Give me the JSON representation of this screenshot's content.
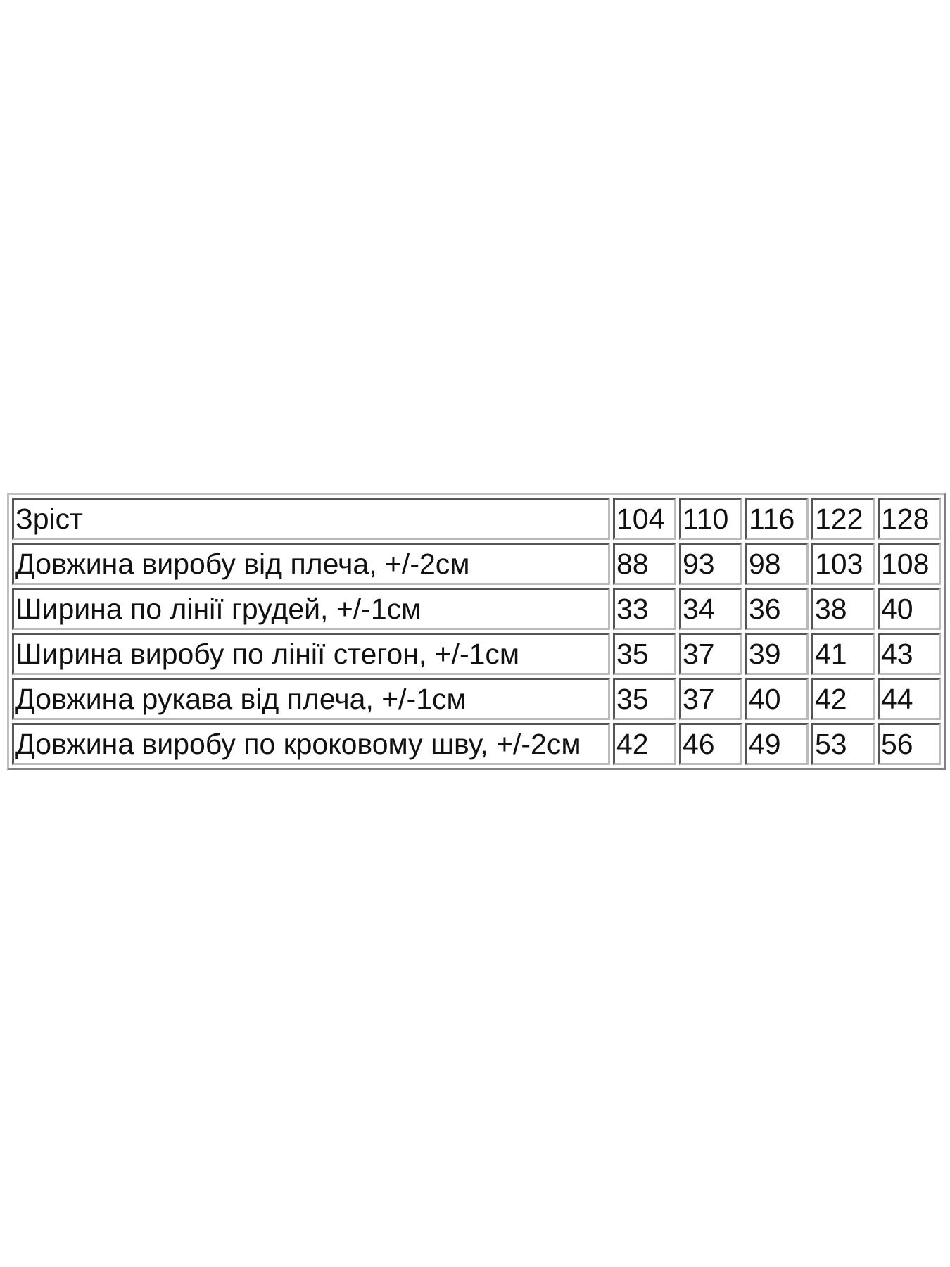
{
  "table": {
    "header": {
      "label": "Зріст",
      "values": [
        "104",
        "110",
        "116",
        "122",
        "128"
      ]
    },
    "rows": [
      {
        "label": "Довжина виробу від плеча, +/-2см",
        "values": [
          "88",
          "93",
          "98",
          "103",
          "108"
        ]
      },
      {
        "label": "Ширина по лінії грудей, +/-1см",
        "values": [
          "33",
          "34",
          "36",
          "38",
          "40"
        ]
      },
      {
        "label": "Ширина виробу по лінії стегон, +/-1см",
        "values": [
          "35",
          "37",
          "39",
          "41",
          "43"
        ]
      },
      {
        "label": "Довжина рукава від плеча, +/-1см",
        "values": [
          "35",
          "37",
          "40",
          "42",
          "44"
        ]
      },
      {
        "label": "Довжина виробу по кроковому шву, +/-2см",
        "values": [
          "42",
          "46",
          "49",
          "53",
          "56"
        ]
      }
    ]
  }
}
